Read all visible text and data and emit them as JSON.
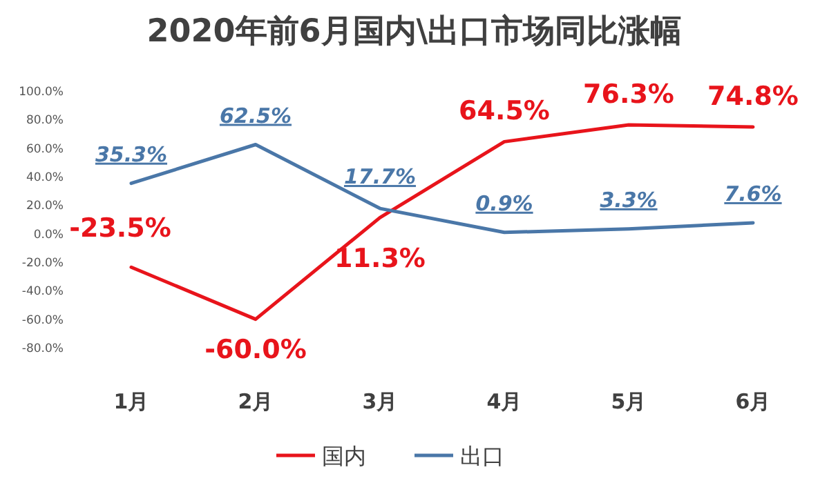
{
  "chart_data": {
    "type": "line",
    "title": "2020年前6月国内\\出口市场同比涨幅",
    "categories": [
      "1月",
      "2月",
      "3月",
      "4月",
      "5月",
      "6月"
    ],
    "series": [
      {
        "name": "国内",
        "color": "#e8141b",
        "values": [
          -23.5,
          -60.0,
          11.3,
          64.5,
          76.3,
          74.8
        ],
        "value_labels": [
          "-23.5%",
          "-60.0%",
          "11.3%",
          "64.5%",
          "76.3%",
          "74.8%"
        ]
      },
      {
        "name": "出口",
        "color": "#4a77a8",
        "values": [
          35.3,
          62.5,
          17.7,
          0.9,
          3.3,
          7.6
        ],
        "value_labels": [
          "35.3%",
          "62.5%",
          "17.7%",
          "0.9%",
          "3.3%",
          "7.6%"
        ]
      }
    ],
    "ylim": [
      -80,
      100
    ],
    "yticks": [
      {
        "value": -80,
        "label": "-80.0%"
      },
      {
        "value": -60,
        "label": "-60.0%"
      },
      {
        "value": -40,
        "label": "-40.0%"
      },
      {
        "value": -20,
        "label": "-20.0%"
      },
      {
        "value": 0,
        "label": "0.0%"
      },
      {
        "value": 20,
        "label": "20.0%"
      },
      {
        "value": 40,
        "label": "40.0%"
      },
      {
        "value": 60,
        "label": "60.0%"
      },
      {
        "value": 80,
        "label": "80.0%"
      },
      {
        "value": 100,
        "label": "100.0%"
      }
    ],
    "legend": "bottom",
    "grid": false,
    "marker": "none",
    "line_style": "solid"
  }
}
